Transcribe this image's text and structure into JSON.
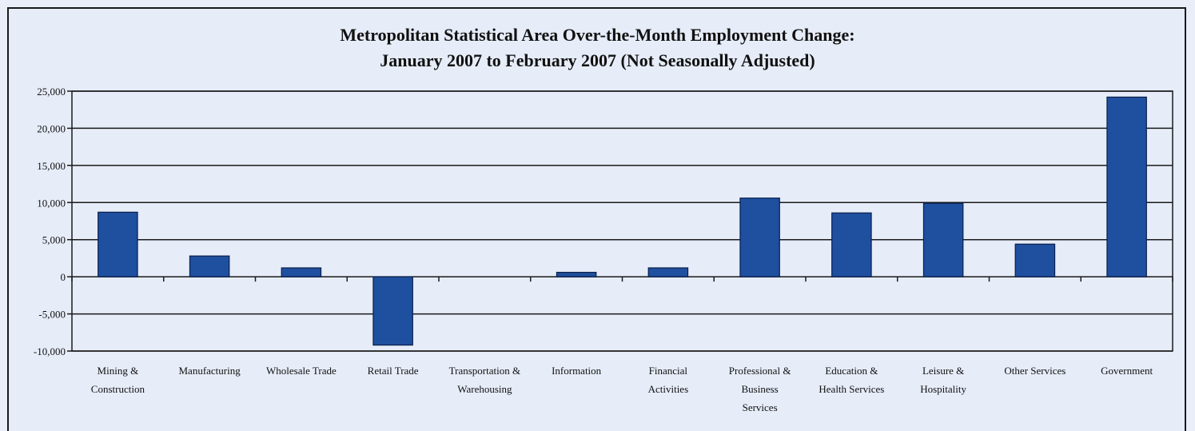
{
  "chart_data": {
    "type": "bar",
    "title": "Metropolitan Statistical Area Over-the-Month Employment Change:",
    "subtitle": "January 2007 to February 2007 (Not Seasonally Adjusted)",
    "xlabel": "",
    "ylabel": "",
    "ylim": [
      -10000,
      25000
    ],
    "yticks": [
      25000,
      20000,
      15000,
      10000,
      5000,
      0,
      -5000,
      -10000
    ],
    "ytick_labels": [
      "25,000",
      "20,000",
      "15,000",
      "10,000",
      "5,000",
      "0",
      "-5,000",
      "-10,000"
    ],
    "grid": true,
    "legend": "none",
    "categories": [
      [
        "Mining &",
        "Construction"
      ],
      [
        "Manufacturing"
      ],
      [
        "Wholesale Trade"
      ],
      [
        "Retail Trade"
      ],
      [
        "Transportation &",
        "Warehousing"
      ],
      [
        "Information"
      ],
      [
        "Financial",
        "Activities"
      ],
      [
        "Professional &",
        "Business",
        "Services"
      ],
      [
        "Education &",
        "Health Services"
      ],
      [
        "Leisure &",
        "Hospitality"
      ],
      [
        "Other Services"
      ],
      [
        "Government"
      ]
    ],
    "values": [
      8700,
      2800,
      1200,
      -9200,
      0,
      600,
      1200,
      10600,
      8600,
      9900,
      4400,
      24200
    ],
    "colors": {
      "bar": "#1f4f9f",
      "bar_edge": "#0a1f4a",
      "grid": "#1a1a1a",
      "plot_bg": "#e6ecf8"
    }
  }
}
